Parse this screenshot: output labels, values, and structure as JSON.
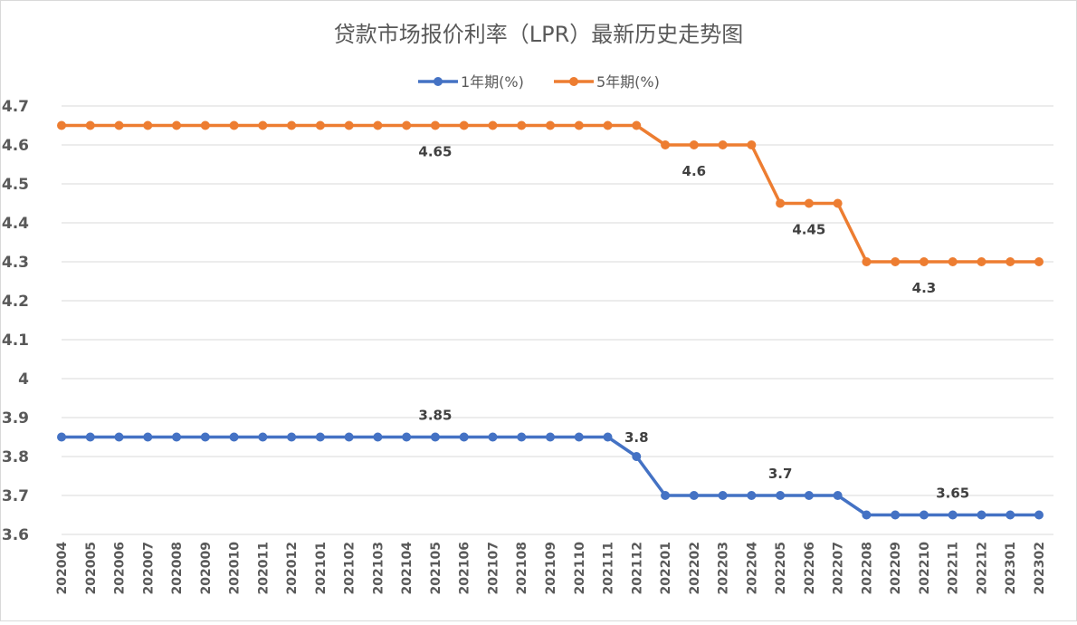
{
  "chart_data": {
    "type": "line",
    "title": "贷款市场报价利率（LPR）最新历史走势图",
    "xlabel": "",
    "ylabel": "",
    "ylim": [
      3.6,
      4.7
    ],
    "yticks": [
      "4.7",
      "4.6",
      "4.5",
      "4.4",
      "4.3",
      "4.2",
      "4.1",
      "4",
      "3.9",
      "3.8",
      "3.7",
      "3.6"
    ],
    "grid": true,
    "legend_position": "top",
    "categories": [
      "202004",
      "202005",
      "202006",
      "202007",
      "202008",
      "202009",
      "202010",
      "202011",
      "202012",
      "202101",
      "202102",
      "202103",
      "202104",
      "202105",
      "202106",
      "202107",
      "202108",
      "202109",
      "202110",
      "202111",
      "202112",
      "202201",
      "202202",
      "202203",
      "202204",
      "202205",
      "202206",
      "202207",
      "202208",
      "202209",
      "202210",
      "202211",
      "202212",
      "202301",
      "202302"
    ],
    "series": [
      {
        "name": "1年期(%)",
        "color": "#4472C4",
        "values": [
          3.85,
          3.85,
          3.85,
          3.85,
          3.85,
          3.85,
          3.85,
          3.85,
          3.85,
          3.85,
          3.85,
          3.85,
          3.85,
          3.85,
          3.85,
          3.85,
          3.85,
          3.85,
          3.85,
          3.85,
          3.8,
          3.7,
          3.7,
          3.7,
          3.7,
          3.7,
          3.7,
          3.7,
          3.65,
          3.65,
          3.65,
          3.65,
          3.65,
          3.65,
          3.65
        ],
        "labels": [
          {
            "index": 13,
            "text": "3.85"
          },
          {
            "index": 20,
            "text": "3.8"
          },
          {
            "index": 25,
            "text": "3.7"
          },
          {
            "index": 31,
            "text": "3.65"
          }
        ]
      },
      {
        "name": "5年期(%)",
        "color": "#ED7D31",
        "values": [
          4.65,
          4.65,
          4.65,
          4.65,
          4.65,
          4.65,
          4.65,
          4.65,
          4.65,
          4.65,
          4.65,
          4.65,
          4.65,
          4.65,
          4.65,
          4.65,
          4.65,
          4.65,
          4.65,
          4.65,
          4.65,
          4.6,
          4.6,
          4.6,
          4.6,
          4.45,
          4.45,
          4.45,
          4.3,
          4.3,
          4.3,
          4.3,
          4.3,
          4.3,
          4.3
        ],
        "labels": [
          {
            "index": 13,
            "text": "4.65"
          },
          {
            "index": 22,
            "text": "4.6"
          },
          {
            "index": 26,
            "text": "4.45"
          },
          {
            "index": 30,
            "text": "4.3"
          }
        ]
      }
    ]
  }
}
